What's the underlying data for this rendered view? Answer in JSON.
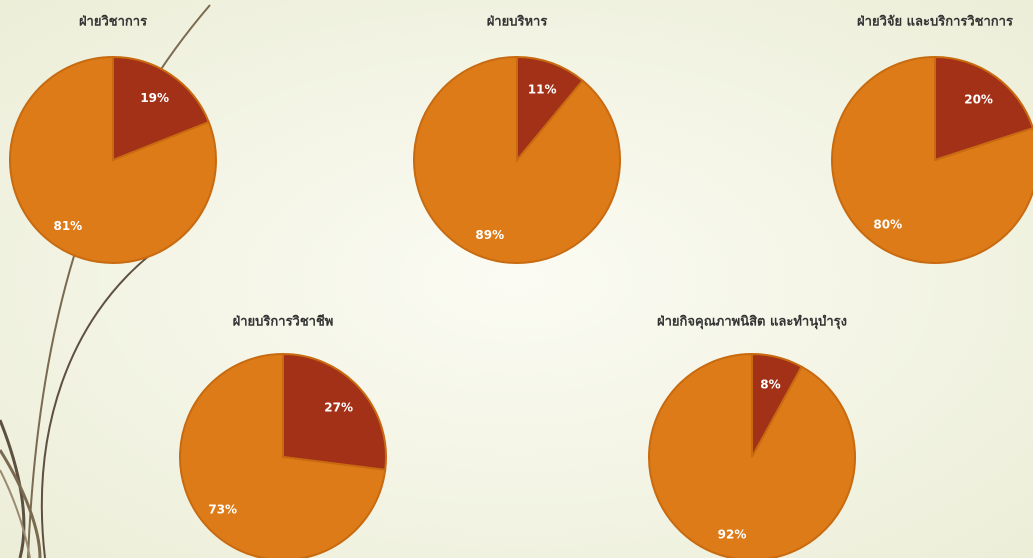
{
  "chart_data": [
    {
      "type": "pie",
      "title": "ฝ่ายวิชาการ",
      "values": [
        19,
        81
      ],
      "value_labels": [
        "19%",
        "81%"
      ],
      "colors": [
        "#a33118",
        "#dc7b18"
      ]
    },
    {
      "type": "pie",
      "title": "ฝ่ายบริหาร",
      "values": [
        11,
        89
      ],
      "value_labels": [
        "11%",
        "89%"
      ],
      "colors": [
        "#a33118",
        "#dc7b18"
      ]
    },
    {
      "type": "pie",
      "title": "ฝ่ายวิจัย และบริการวิชาการ",
      "values": [
        20,
        80
      ],
      "value_labels": [
        "20%",
        "80%"
      ],
      "colors": [
        "#a33118",
        "#dc7b18"
      ]
    },
    {
      "type": "pie",
      "title": "ฝ่ายบริการวิชาชีพ",
      "values": [
        27,
        73
      ],
      "value_labels": [
        "27%",
        "73%"
      ],
      "colors": [
        "#a33118",
        "#dc7b18"
      ]
    },
    {
      "type": "pie",
      "title": "ฝ่ายกิจคุณภาพนิสิต และทำนุบำรุง",
      "values": [
        8,
        92
      ],
      "value_labels": [
        "8%",
        "92%"
      ],
      "colors": [
        "#a33118",
        "#dc7b18"
      ]
    }
  ]
}
